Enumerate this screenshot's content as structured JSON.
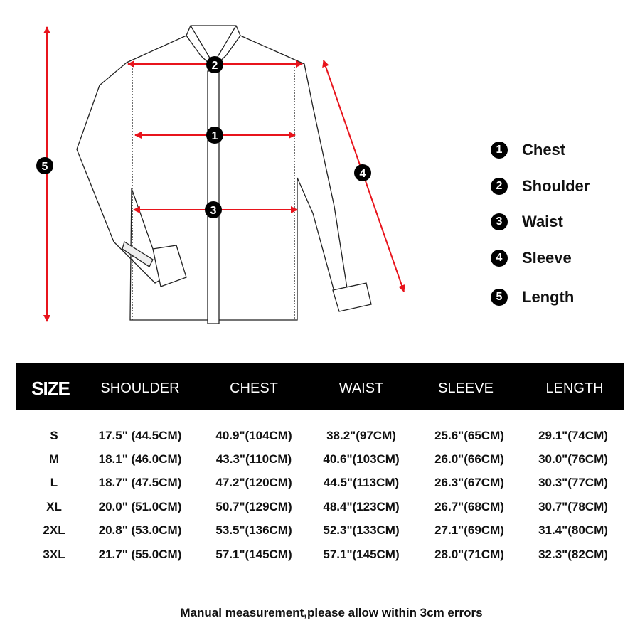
{
  "legend": [
    {
      "num": "1",
      "label": "Chest"
    },
    {
      "num": "2",
      "label": "Shoulder"
    },
    {
      "num": "3",
      "label": "Waist"
    },
    {
      "num": "4",
      "label": "Sleeve"
    },
    {
      "num": "5",
      "label": "Length"
    }
  ],
  "colors": {
    "arrow": "#e8141c",
    "marker": "#000000",
    "header_bg": "#000000"
  },
  "table": {
    "headers": [
      "SIZE",
      "SHOULDER",
      "CHEST",
      "WAIST",
      "SLEEVE",
      "LENGTH"
    ],
    "rows": [
      [
        "S",
        "17.5\" (44.5CM)",
        "40.9\"(104CM)",
        "38.2\"(97CM)",
        "25.6\"(65CM)",
        "29.1\"(74CM)"
      ],
      [
        "M",
        "18.1\" (46.0CM)",
        "43.3\"(110CM)",
        "40.6\"(103CM)",
        "26.0\"(66CM)",
        "30.0\"(76CM)"
      ],
      [
        "L",
        "18.7\" (47.5CM)",
        "47.2\"(120CM)",
        "44.5\"(113CM)",
        "26.3\"(67CM)",
        "30.3\"(77CM)"
      ],
      [
        "XL",
        "20.0\" (51.0CM)",
        "50.7\"(129CM)",
        "48.4\"(123CM)",
        "26.7\"(68CM)",
        "30.7\"(78CM)"
      ],
      [
        "2XL",
        "20.8\" (53.0CM)",
        "53.5\"(136CM)",
        "52.3\"(133CM)",
        "27.1\"(69CM)",
        "31.4\"(80CM)"
      ],
      [
        "3XL",
        "21.7\" (55.0CM)",
        "57.1\"(145CM)",
        "57.1\"(145CM)",
        "28.0\"(71CM)",
        "32.3\"(82CM)"
      ]
    ]
  },
  "note": "Manual measurement,please allow within 3cm errors"
}
